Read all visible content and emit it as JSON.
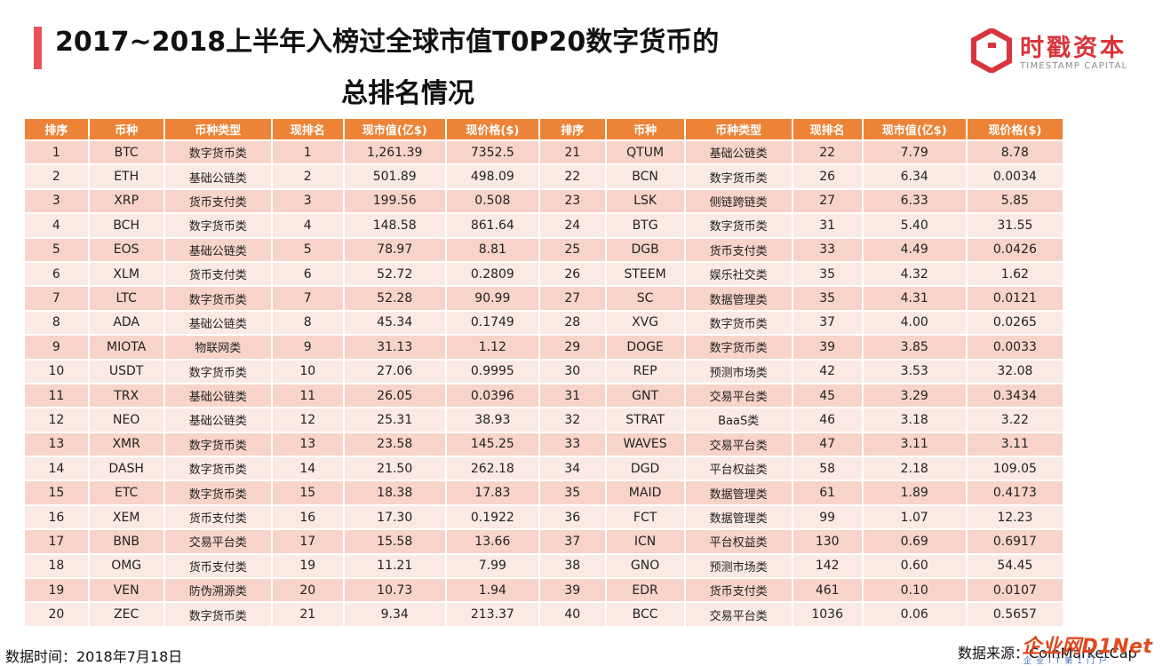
{
  "header": {
    "title_line1": "2017~2018上半年入榜过全球市值T0P20数字货币的",
    "title_line2": "总排名情况",
    "accent_color": "#e8535a"
  },
  "logo": {
    "name_cn": "时戳资本",
    "name_en": "TIMESTAMP CAPITAL",
    "brand_color": "#d9343a"
  },
  "table": {
    "header_color": "#ec8336",
    "columns": [
      "排序",
      "币种",
      "币种类型",
      "现排名",
      "现市值(亿$)",
      "现价格($)",
      "排序",
      "币种",
      "币种类型",
      "现排名",
      "现市值(亿$)",
      "现价格($)"
    ],
    "rows": [
      [
        "1",
        "BTC",
        "数字货币类",
        "1",
        "1,261.39",
        "7352.5",
        "21",
        "QTUM",
        "基础公链类",
        "22",
        "7.79",
        "8.78"
      ],
      [
        "2",
        "ETH",
        "基础公链类",
        "2",
        "501.89",
        "498.09",
        "22",
        "BCN",
        "数字货币类",
        "26",
        "6.34",
        "0.0034"
      ],
      [
        "3",
        "XRP",
        "货币支付类",
        "3",
        "199.56",
        "0.508",
        "23",
        "LSK",
        "侧链跨链类",
        "27",
        "6.33",
        "5.85"
      ],
      [
        "4",
        "BCH",
        "数字货币类",
        "4",
        "148.58",
        "861.64",
        "24",
        "BTG",
        "数字货币类",
        "31",
        "5.40",
        "31.55"
      ],
      [
        "5",
        "EOS",
        "基础公链类",
        "5",
        "78.97",
        "8.81",
        "25",
        "DGB",
        "货币支付类",
        "33",
        "4.49",
        "0.0426"
      ],
      [
        "6",
        "XLM",
        "货币支付类",
        "6",
        "52.72",
        "0.2809",
        "26",
        "STEEM",
        "娱乐社交类",
        "35",
        "4.32",
        "1.62"
      ],
      [
        "7",
        "LTC",
        "数字货币类",
        "7",
        "52.28",
        "90.99",
        "27",
        "SC",
        "数据管理类",
        "35",
        "4.31",
        "0.0121"
      ],
      [
        "8",
        "ADA",
        "基础公链类",
        "8",
        "45.34",
        "0.1749",
        "28",
        "XVG",
        "数字货币类",
        "37",
        "4.00",
        "0.0265"
      ],
      [
        "9",
        "MIOTA",
        "物联网类",
        "9",
        "31.13",
        "1.12",
        "29",
        "DOGE",
        "数字货币类",
        "39",
        "3.85",
        "0.0033"
      ],
      [
        "10",
        "USDT",
        "数字货币类",
        "10",
        "27.06",
        "0.9995",
        "30",
        "REP",
        "预测市场类",
        "42",
        "3.53",
        "32.08"
      ],
      [
        "11",
        "TRX",
        "基础公链类",
        "11",
        "26.05",
        "0.0396",
        "31",
        "GNT",
        "交易平台类",
        "45",
        "3.29",
        "0.3434"
      ],
      [
        "12",
        "NEO",
        "基础公链类",
        "12",
        "25.31",
        "38.93",
        "32",
        "STRAT",
        "BaaS类",
        "46",
        "3.18",
        "3.22"
      ],
      [
        "13",
        "XMR",
        "数字货币类",
        "13",
        "23.58",
        "145.25",
        "33",
        "WAVES",
        "交易平台类",
        "47",
        "3.11",
        "3.11"
      ],
      [
        "14",
        "DASH",
        "数字货币类",
        "14",
        "21.50",
        "262.18",
        "34",
        "DGD",
        "平台权益类",
        "58",
        "2.18",
        "109.05"
      ],
      [
        "15",
        "ETC",
        "数字货币类",
        "15",
        "18.38",
        "17.83",
        "35",
        "MAID",
        "数据管理类",
        "61",
        "1.89",
        "0.4173"
      ],
      [
        "16",
        "XEM",
        "货币支付类",
        "16",
        "17.30",
        "0.1922",
        "36",
        "FCT",
        "数据管理类",
        "99",
        "1.07",
        "12.23"
      ],
      [
        "17",
        "BNB",
        "交易平台类",
        "17",
        "15.58",
        "13.66",
        "37",
        "ICN",
        "平台权益类",
        "130",
        "0.69",
        "0.6917"
      ],
      [
        "18",
        "OMG",
        "货币支付类",
        "19",
        "11.21",
        "7.99",
        "38",
        "GNO",
        "预测市场类",
        "142",
        "0.60",
        "54.45"
      ],
      [
        "19",
        "VEN",
        "防伪溯源类",
        "20",
        "10.73",
        "1.94",
        "39",
        "EDR",
        "货币支付类",
        "461",
        "0.10",
        "0.0107"
      ],
      [
        "20",
        "ZEC",
        "数字货币类",
        "21",
        "9.34",
        "213.37",
        "40",
        "BCC",
        "交易平台类",
        "1036",
        "0.06",
        "0.5657"
      ]
    ]
  },
  "footer": {
    "data_time": "数据时间：2018年7月18日",
    "data_source": "数据来源：CoinMarketCap"
  },
  "watermark": {
    "text": "企业网D1Net",
    "sub": "企业IT第1门户"
  }
}
